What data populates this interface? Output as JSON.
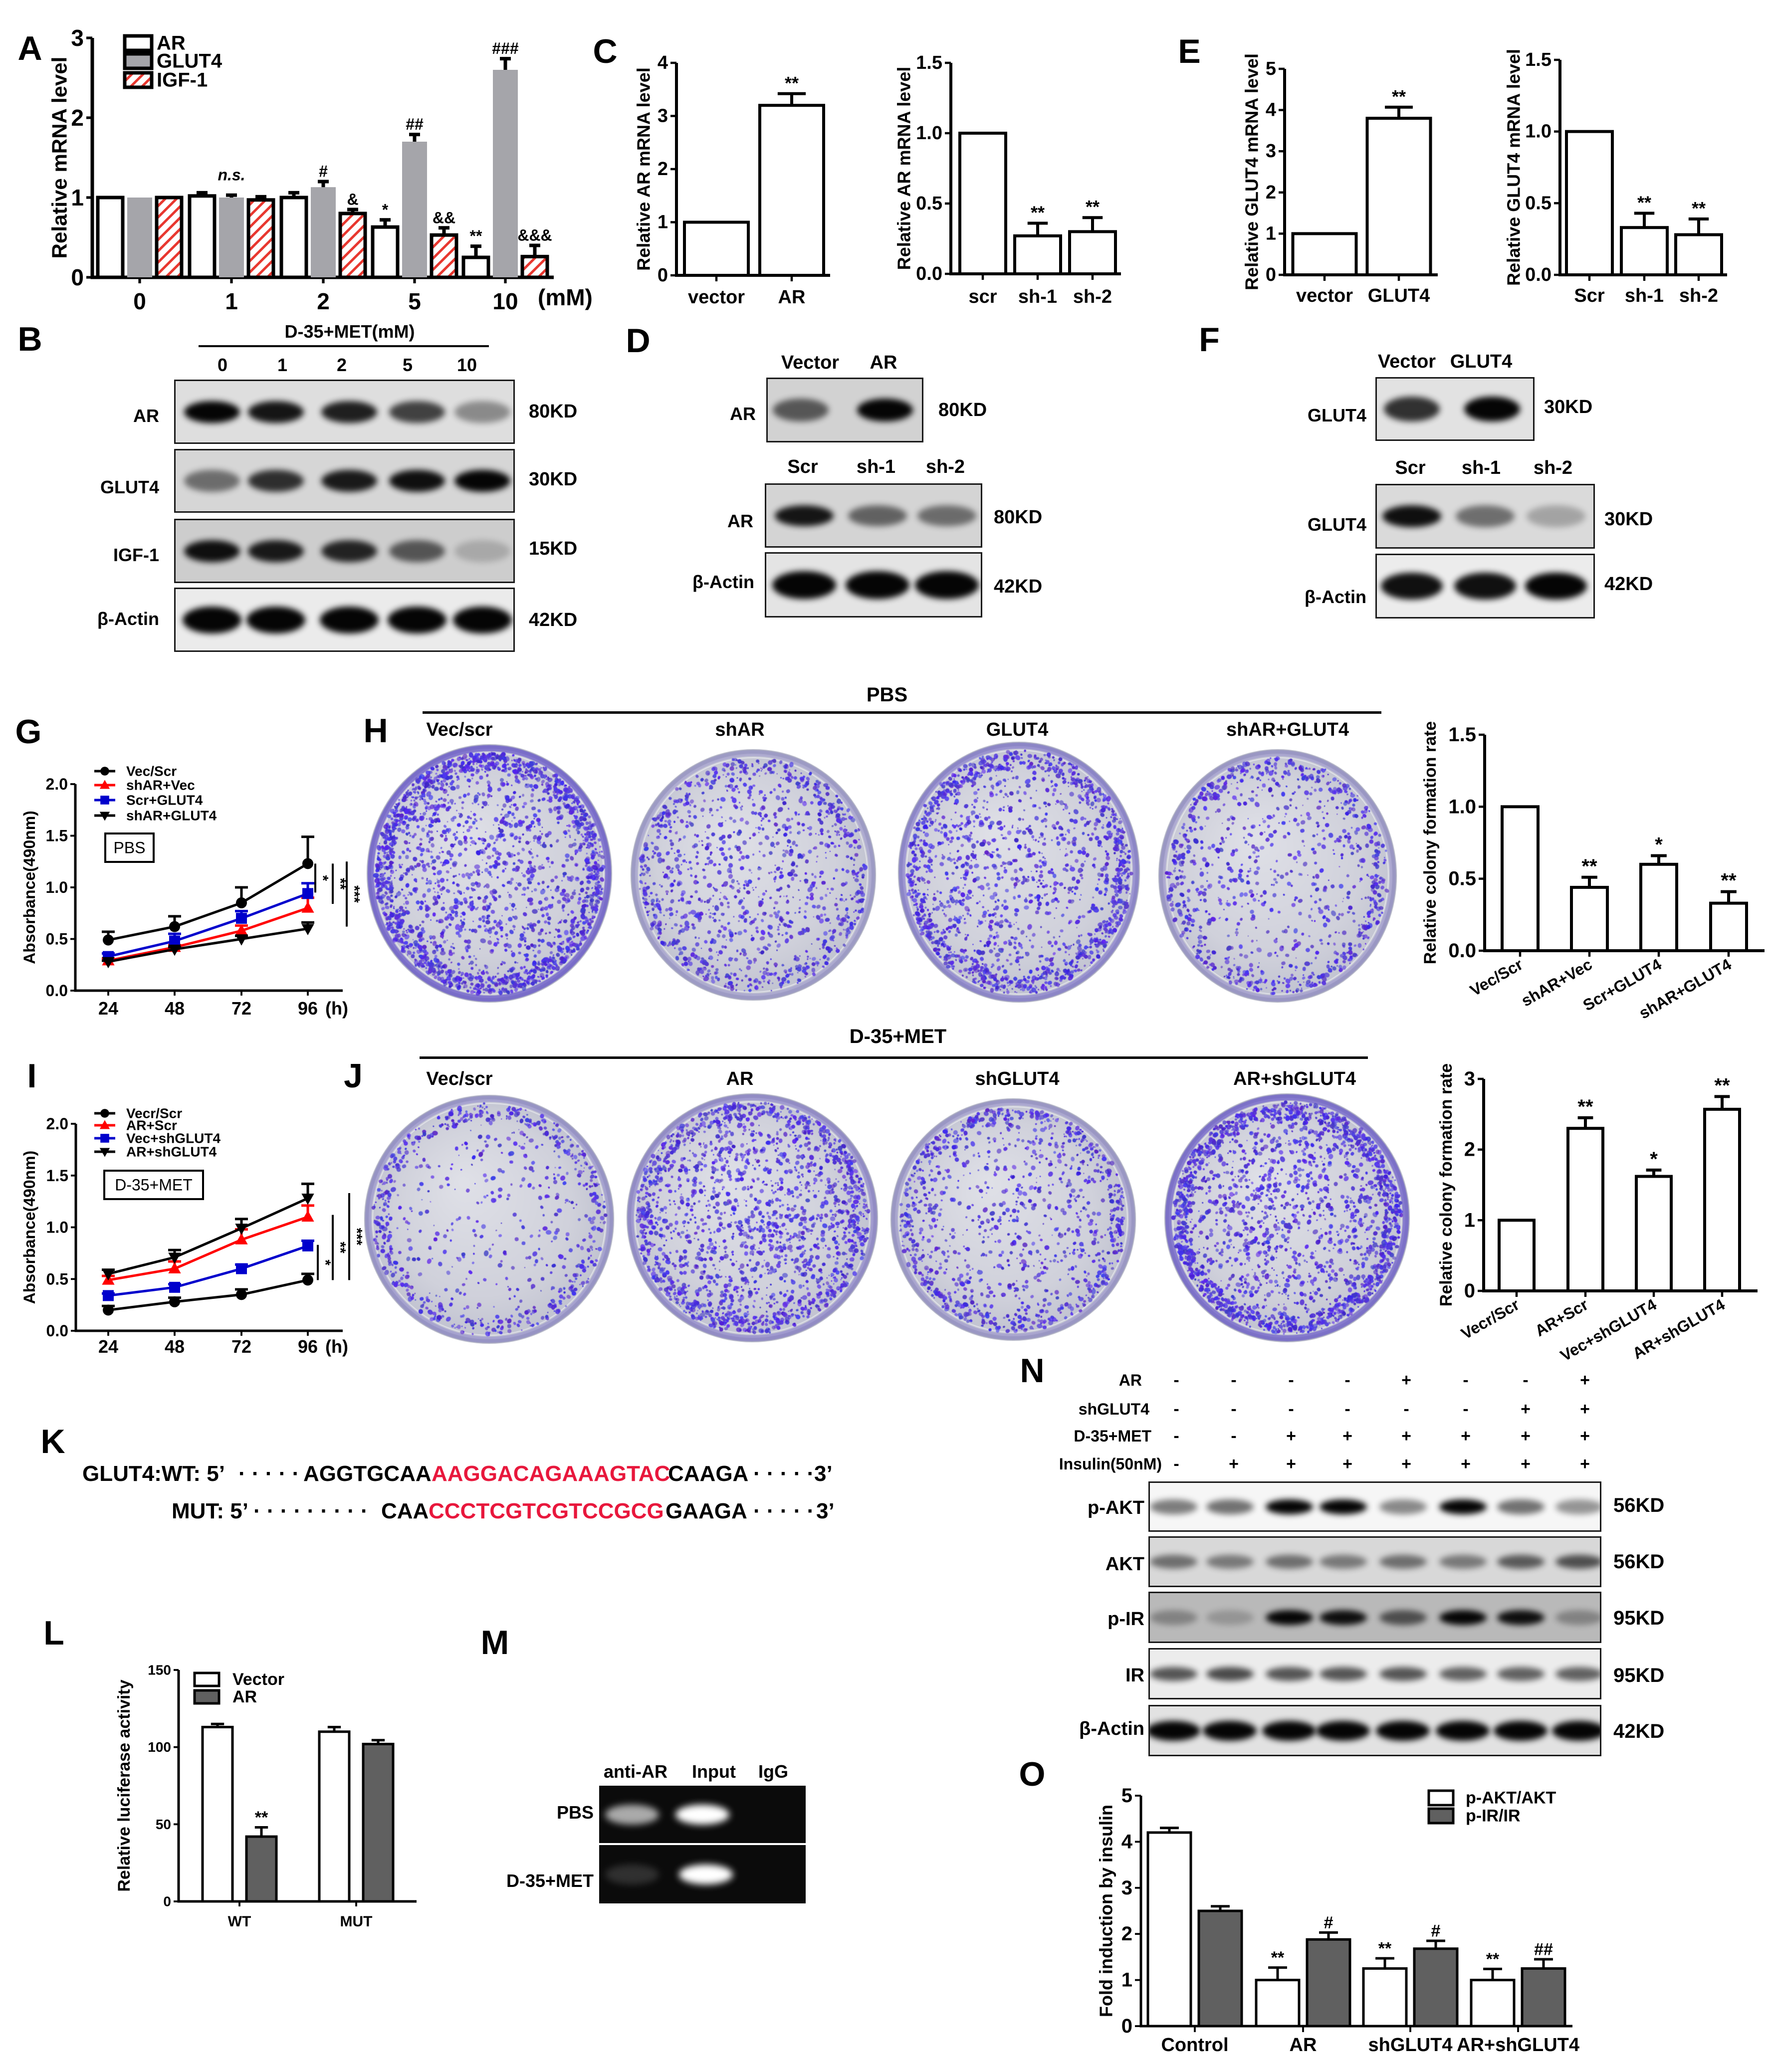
{
  "letters": {
    "A": "A",
    "B": "B",
    "C": "C",
    "D": "D",
    "E": "E",
    "F": "F",
    "G": "G",
    "H": "H",
    "I": "I",
    "J": "J",
    "K": "K",
    "L": "L",
    "M": "M",
    "N": "N",
    "O": "O"
  },
  "panel_B": {
    "header": "D-35+MET(mM)",
    "lanes": [
      "0",
      "1",
      "2",
      "5",
      "10"
    ],
    "rows": [
      {
        "label": "AR",
        "kd": "80KD",
        "bg": "#dedede",
        "bands": [
          1.0,
          0.92,
          0.88,
          0.72,
          0.38
        ]
      },
      {
        "label": "GLUT4",
        "kd": "30KD",
        "bg": "#d6d6d6",
        "bands": [
          0.5,
          0.8,
          0.9,
          0.95,
          1.0
        ]
      },
      {
        "label": "IGF-1",
        "kd": "15KD",
        "bg": "#cdcdcd",
        "bands": [
          0.95,
          0.9,
          0.85,
          0.6,
          0.18
        ]
      },
      {
        "label": "β-Actin",
        "kd": "42KD",
        "bg": "#ebebeb",
        "bands": [
          1,
          1,
          1,
          1,
          1
        ]
      }
    ]
  },
  "panel_D": {
    "top": {
      "lanes": [
        "Vector",
        "AR"
      ],
      "rows": [
        {
          "label": "AR",
          "kd": "80KD",
          "bg": "#d2d2d2",
          "bands": [
            0.6,
            1.0
          ]
        }
      ]
    },
    "bottom": {
      "lanes": [
        "Scr",
        "sh-1",
        "sh-2"
      ],
      "rows": [
        {
          "label": "AR",
          "kd": "80KD",
          "bg": "#d4d4d4",
          "bands": [
            0.92,
            0.55,
            0.5
          ]
        },
        {
          "label": "β-Actin",
          "kd": "42KD",
          "bg": "#e4e4e4",
          "bands": [
            1,
            1,
            1
          ]
        }
      ]
    }
  },
  "panel_F": {
    "top": {
      "lanes": [
        "Vector",
        "GLUT4"
      ],
      "rows": [
        {
          "label": "GLUT4",
          "kd": "30KD",
          "bg": "#e2e2e2",
          "bands": [
            0.8,
            1.0
          ]
        }
      ]
    },
    "bottom": {
      "lanes": [
        "Scr",
        "sh-1",
        "sh-2"
      ],
      "rows": [
        {
          "label": "GLUT4",
          "kd": "30KD",
          "bg": "#dadada",
          "bands": [
            0.95,
            0.5,
            0.25
          ]
        },
        {
          "label": "β-Actin",
          "kd": "42KD",
          "bg": "#ececec",
          "bands": [
            0.95,
            0.95,
            1.0
          ]
        }
      ]
    }
  },
  "panel_H": {
    "condition": "PBS",
    "plates": [
      {
        "label": "Vec/scr",
        "density": 0.85,
        "edge": 0.95
      },
      {
        "label": "shAR",
        "density": 0.6,
        "edge": 0.3
      },
      {
        "label": "GLUT4",
        "density": 0.7,
        "edge": 0.6
      },
      {
        "label": "shAR+GLUT4",
        "density": 0.42,
        "edge": 0.35
      }
    ]
  },
  "panel_J": {
    "condition": "D-35+MET",
    "plates": [
      {
        "label": "Vec/scr",
        "density": 0.25,
        "edge": 0.4
      },
      {
        "label": "AR",
        "density": 0.95,
        "edge": 0.5
      },
      {
        "label": "shGLUT4",
        "density": 0.5,
        "edge": 0.35
      },
      {
        "label": "AR+shGLUT4",
        "density": 0.85,
        "edge": 0.9
      }
    ]
  },
  "panel_K": {
    "site_color": "#e8173c",
    "wt": {
      "prefix": "GLUT4:WT: 5’",
      "dots_left": "· · · · ·",
      "flank_left": "AGGTGCAA",
      "site": "AAGGACAGAAAGTAC",
      "flank_right": "CAAGA",
      "dots_right": "· · · · ·",
      "suffix": "3’"
    },
    "mut": {
      "prefix": "MUT: 5’",
      "dots_left": "· · · · · · · · ·",
      "flank_left": "CAA",
      "site": "CCCTCGTCGTCCGCG",
      "flank_right": "GAAGA",
      "dots_right": "· · · · ·",
      "suffix": "3’"
    }
  },
  "panel_M": {
    "lanes": [
      "anti-AR",
      "Input",
      "IgG"
    ],
    "rows": [
      {
        "label": "PBS",
        "bands": [
          0.65,
          1.0,
          0
        ]
      },
      {
        "label": "D-35+MET",
        "bands": [
          0.15,
          1.0,
          0
        ]
      }
    ]
  },
  "panel_N": {
    "conditions": [
      {
        "label": "AR",
        "values": [
          "-",
          "-",
          "-",
          "-",
          "+",
          "-",
          "-",
          "+"
        ]
      },
      {
        "label": "shGLUT4",
        "values": [
          "-",
          "-",
          "-",
          "-",
          "-",
          "-",
          "+",
          "+"
        ]
      },
      {
        "label": "D-35+MET",
        "values": [
          "-",
          "-",
          "+",
          "+",
          "+",
          "+",
          "+",
          "+"
        ]
      },
      {
        "label": "Insulin(50nM)",
        "values": [
          "-",
          "+",
          "+",
          "+",
          "+",
          "+",
          "+",
          "+"
        ]
      }
    ],
    "rows": [
      {
        "label": "p-AKT",
        "kd": "56KD",
        "bg": "#f6f6f6",
        "bands": [
          0.5,
          0.55,
          1.0,
          1.0,
          0.45,
          1.0,
          0.55,
          0.4
        ]
      },
      {
        "label": "AKT",
        "kd": "56KD",
        "bg": "#d8d8d8",
        "bands": [
          0.5,
          0.45,
          0.5,
          0.45,
          0.5,
          0.45,
          0.6,
          0.65
        ]
      },
      {
        "label": "p-IR",
        "kd": "95KD",
        "bg": "#b9b9b9",
        "bands": [
          0.3,
          0.2,
          1.0,
          0.95,
          0.6,
          1.0,
          0.95,
          0.3
        ]
      },
      {
        "label": "IR",
        "kd": "95KD",
        "bg": "#ececec",
        "bands": [
          0.65,
          0.7,
          0.65,
          0.65,
          0.65,
          0.6,
          0.6,
          0.6
        ]
      },
      {
        "label": "β-Actin",
        "kd": "42KD",
        "bg": "#e2e2e2",
        "bands": [
          1,
          1,
          1,
          1,
          1,
          1,
          1,
          1
        ]
      }
    ]
  },
  "chart_data": [
    {
      "id": "A",
      "type": "bar",
      "title": "",
      "xlabel": "(mM)",
      "ylabel": "Relative mRNA level",
      "categories": [
        "0",
        "1",
        "2",
        "5",
        "10"
      ],
      "ylim": [
        0,
        3
      ],
      "yticks": [
        0,
        1,
        2,
        3
      ],
      "ytick_labels": [
        "0",
        "1",
        "2",
        "3"
      ],
      "legend": [
        "AR",
        "GLUT4",
        "IGF-1"
      ],
      "legend_position": "upper left",
      "grid": false,
      "series": [
        {
          "name": "AR",
          "fill": "#ffffff",
          "border": true,
          "values": [
            1.0,
            1.02,
            1.0,
            0.63,
            0.25
          ],
          "errors": [
            0,
            0.04,
            0.06,
            0.09,
            0.14
          ],
          "labels": [
            "",
            "",
            "",
            "*",
            "**"
          ]
        },
        {
          "name": "GLUT4",
          "fill": "#a5a5aa",
          "border": false,
          "values": [
            1.0,
            1.0,
            1.13,
            1.7,
            2.6
          ],
          "errors": [
            0,
            0.03,
            0.07,
            0.09,
            0.14
          ],
          "labels": [
            "",
            "n.s.",
            "#",
            "##",
            "###"
          ]
        },
        {
          "name": "IGF-1",
          "fill": "#ffffff",
          "hatch": "#e8372f",
          "border": true,
          "values": [
            1.0,
            0.97,
            0.8,
            0.53,
            0.26
          ],
          "errors": [
            0,
            0.04,
            0.05,
            0.09,
            0.14
          ],
          "labels": [
            "",
            "",
            "&",
            "&&",
            "&&&"
          ]
        }
      ]
    },
    {
      "id": "C_left",
      "type": "bar",
      "ylabel": "Relative AR mRNA level",
      "categories": [
        "vector",
        "AR"
      ],
      "ylim": [
        0,
        4
      ],
      "yticks": [
        0,
        1,
        2,
        3,
        4
      ],
      "ytick_labels": [
        "0",
        "1",
        "2",
        "3",
        "4"
      ],
      "series": [
        {
          "name": "AR mRNA",
          "fill": "#ffffff",
          "border": true,
          "values": [
            1.0,
            3.2
          ],
          "errors": [
            0,
            0.22
          ],
          "labels": [
            "",
            "**"
          ]
        }
      ]
    },
    {
      "id": "C_right",
      "type": "bar",
      "ylabel": "Relative AR mRNA level",
      "categories": [
        "scr",
        "sh-1",
        "sh-2"
      ],
      "ylim": [
        0,
        1.5
      ],
      "yticks": [
        0,
        0.5,
        1,
        1.5
      ],
      "ytick_labels": [
        "0.0",
        "0.5",
        "1.0",
        "1.5"
      ],
      "series": [
        {
          "name": "AR mRNA",
          "fill": "#ffffff",
          "border": true,
          "values": [
            1.0,
            0.27,
            0.3
          ],
          "errors": [
            0,
            0.09,
            0.1
          ],
          "labels": [
            "",
            "**",
            "**"
          ]
        }
      ]
    },
    {
      "id": "E_left",
      "type": "bar",
      "ylabel": "Relative GLUT4 mRNA level",
      "categories": [
        "vector",
        "GLUT4"
      ],
      "ylim": [
        0,
        5
      ],
      "yticks": [
        0,
        1,
        2,
        3,
        4,
        5
      ],
      "ytick_labels": [
        "0",
        "1",
        "2",
        "3",
        "4",
        "5"
      ],
      "series": [
        {
          "name": "GLUT4 mRNA",
          "fill": "#ffffff",
          "border": true,
          "values": [
            1.0,
            3.8
          ],
          "errors": [
            0,
            0.27
          ],
          "labels": [
            "",
            "**"
          ]
        }
      ]
    },
    {
      "id": "E_right",
      "type": "bar",
      "ylabel": "Relative GLUT4 mRNA level",
      "categories": [
        "Scr",
        "sh-1",
        "sh-2"
      ],
      "ylim": [
        0,
        1.5
      ],
      "yticks": [
        0,
        0.5,
        1,
        1.5
      ],
      "ytick_labels": [
        "0.0",
        "0.5",
        "1.0",
        "1.5"
      ],
      "series": [
        {
          "name": "GLUT4 mRNA",
          "fill": "#ffffff",
          "border": true,
          "values": [
            1.0,
            0.33,
            0.28
          ],
          "errors": [
            0,
            0.1,
            0.11
          ],
          "labels": [
            "",
            "**",
            "**"
          ]
        }
      ]
    },
    {
      "id": "G",
      "type": "line",
      "xlabel": "(h)",
      "ylabel": "Absorbance(490nm)",
      "categories": [
        "24",
        "48",
        "72",
        "96"
      ],
      "ylim": [
        0,
        2
      ],
      "yticks": [
        0,
        0.5,
        1,
        1.5,
        2
      ],
      "ytick_labels": [
        "0.0",
        "0.5",
        "1.0",
        "1.5",
        "2.0"
      ],
      "condition": "PBS",
      "legend_position": "upper left",
      "series": [
        {
          "name": "Vec/Scr",
          "color": "#000000",
          "marker": "circle",
          "values": [
            0.49,
            0.62,
            0.85,
            1.23
          ],
          "errors": [
            0.08,
            0.1,
            0.15,
            0.26
          ]
        },
        {
          "name": "shAR+Vec",
          "color": "#ff0000",
          "marker": "triangle-up",
          "values": [
            0.29,
            0.42,
            0.58,
            0.8
          ],
          "errors": [
            0.02,
            0.02,
            0.05,
            0.1
          ]
        },
        {
          "name": "Scr+GLUT4",
          "color": "#0000cc",
          "marker": "square",
          "values": [
            0.33,
            0.48,
            0.7,
            0.94
          ],
          "errors": [
            0.03,
            0.07,
            0.07,
            0.1
          ]
        },
        {
          "name": "shAR+GLUT4",
          "color": "#000000",
          "marker": "triangle-down",
          "values": [
            0.28,
            0.4,
            0.5,
            0.6
          ],
          "errors": [
            0.01,
            0.02,
            0.03,
            0.06
          ]
        }
      ],
      "brackets": [
        {
          "from": 1.23,
          "to": 0.95,
          "label": "*"
        },
        {
          "from": 1.23,
          "to": 0.84,
          "label": "**"
        },
        {
          "from": 1.25,
          "to": 0.62,
          "label": "***"
        }
      ]
    },
    {
      "id": "H_bar",
      "type": "bar",
      "ylabel": "Relative colony formation rate",
      "categories": [
        "Vec/Scr",
        "shAR+Vec",
        "Scr+GLUT4",
        "shAR+GLUT4"
      ],
      "ylim": [
        0,
        1.5
      ],
      "yticks": [
        0,
        0.5,
        1,
        1.5
      ],
      "ytick_labels": [
        "0.0",
        "0.5",
        "1.0",
        "1.5"
      ],
      "series": [
        {
          "name": "Relative colony formation rate",
          "fill": "#ffffff",
          "border": true,
          "values": [
            1.0,
            0.44,
            0.6,
            0.33
          ],
          "errors": [
            0,
            0.07,
            0.06,
            0.08
          ],
          "labels": [
            "",
            "**",
            "*",
            "**"
          ]
        }
      ]
    },
    {
      "id": "I",
      "type": "line",
      "xlabel": "(h)",
      "ylabel": "Absorbance(490nm)",
      "categories": [
        "24",
        "48",
        "72",
        "96"
      ],
      "ylim": [
        0,
        2
      ],
      "yticks": [
        0,
        0.5,
        1,
        1.5,
        2
      ],
      "ytick_labels": [
        "0.0",
        "0.5",
        "1.0",
        "1.5",
        "2.0"
      ],
      "condition": "D-35+MET",
      "legend_position": "upper left",
      "series": [
        {
          "name": "Vecr/Scr",
          "color": "#000000",
          "marker": "circle",
          "values": [
            0.2,
            0.28,
            0.35,
            0.49
          ],
          "errors": [
            0.04,
            0.04,
            0.05,
            0.06
          ]
        },
        {
          "name": "AR+Scr",
          "color": "#ff0000",
          "marker": "triangle-up",
          "values": [
            0.49,
            0.6,
            0.88,
            1.1
          ],
          "errors": [
            0.04,
            0.07,
            0.1,
            0.11
          ]
        },
        {
          "name": "Vec+shGLUT4",
          "color": "#0000cc",
          "marker": "square",
          "values": [
            0.34,
            0.42,
            0.6,
            0.82
          ],
          "errors": [
            0.02,
            0.03,
            0.04,
            0.05
          ]
        },
        {
          "name": "AR+shGLUT4",
          "color": "#000000",
          "marker": "triangle-down",
          "values": [
            0.55,
            0.71,
            0.99,
            1.28
          ],
          "errors": [
            0.04,
            0.07,
            0.09,
            0.14
          ]
        }
      ],
      "brackets": [
        {
          "from": 0.49,
          "to": 0.83,
          "label": "*"
        },
        {
          "from": 0.49,
          "to": 1.12,
          "label": "**"
        },
        {
          "from": 0.49,
          "to": 1.33,
          "label": "***"
        }
      ]
    },
    {
      "id": "J_bar",
      "type": "bar",
      "ylabel": "Relative colony formation rate",
      "categories": [
        "Vecr/Scr",
        "AR+Scr",
        "Vec+shGLUT4",
        "AR+shGLUT4"
      ],
      "ylim": [
        0,
        3
      ],
      "yticks": [
        0,
        1,
        2,
        3
      ],
      "ytick_labels": [
        "0",
        "1",
        "2",
        "3"
      ],
      "series": [
        {
          "name": "Relative colony formation rate",
          "fill": "#ffffff",
          "border": true,
          "values": [
            1.0,
            2.3,
            1.62,
            2.57
          ],
          "errors": [
            0,
            0.15,
            0.09,
            0.18
          ],
          "labels": [
            "",
            "**",
            "*",
            "**"
          ]
        }
      ]
    },
    {
      "id": "L",
      "type": "bar",
      "ylabel": "Relative luciferase activity",
      "categories": [
        "WT",
        "MUT"
      ],
      "ylim": [
        0,
        150
      ],
      "yticks": [
        0,
        50,
        100,
        150
      ],
      "ytick_labels": [
        "0",
        "50",
        "100",
        "150"
      ],
      "legend": [
        "Vector",
        "AR"
      ],
      "legend_position": "upper left",
      "series": [
        {
          "name": "Vector",
          "fill": "#ffffff",
          "border": true,
          "values": [
            113,
            110
          ],
          "errors": [
            2,
            3
          ],
          "labels": [
            "",
            ""
          ]
        },
        {
          "name": "AR",
          "fill": "#606060",
          "border": true,
          "values": [
            42,
            102
          ],
          "errors": [
            6,
            2.5
          ],
          "labels": [
            "**",
            ""
          ]
        }
      ]
    },
    {
      "id": "O",
      "type": "bar",
      "ylabel": "Fold induction by insulin",
      "categories": [
        "Control",
        "AR",
        "shGLUT4",
        "AR+shGLUT4"
      ],
      "ylim": [
        0,
        5
      ],
      "yticks": [
        0,
        1,
        2,
        3,
        4,
        5
      ],
      "ytick_labels": [
        "0",
        "1",
        "2",
        "3",
        "4",
        "5"
      ],
      "legend": [
        "p-AKT/AKT",
        "p-IR/IR"
      ],
      "legend_position": "upper right",
      "series": [
        {
          "name": "p-AKT/AKT",
          "fill": "#ffffff",
          "border": true,
          "values": [
            4.2,
            1.0,
            1.25,
            1.0
          ],
          "errors": [
            0.1,
            0.27,
            0.22,
            0.24
          ],
          "labels": [
            "",
            "**",
            "**",
            "**"
          ]
        },
        {
          "name": "p-IR/IR",
          "fill": "#606060",
          "border": true,
          "values": [
            2.5,
            1.88,
            1.68,
            1.25
          ],
          "errors": [
            0.1,
            0.15,
            0.17,
            0.2
          ],
          "labels": [
            "",
            "#",
            "#",
            "##"
          ]
        }
      ]
    }
  ]
}
